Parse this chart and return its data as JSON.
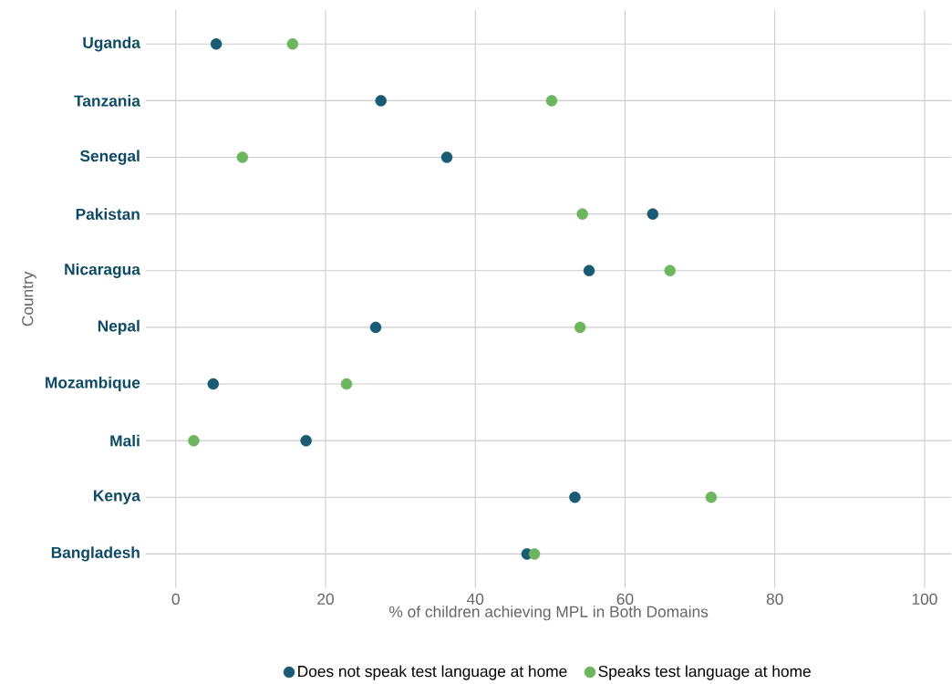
{
  "chart_data": {
    "type": "scatter",
    "orientation": "horizontal",
    "xlabel": "% of children achieving MPL in Both Domains",
    "ylabel": "Country",
    "categories": [
      "Uganda",
      "Tanzania",
      "Senegal",
      "Pakistan",
      "Nicaragua",
      "Nepal",
      "Mozambique",
      "Mali",
      "Kenya",
      "Bangladesh"
    ],
    "series": [
      {
        "name": "Does not speak test language at home",
        "color": "#1a5a73",
        "values": [
          5.4,
          27.4,
          36.2,
          63.7,
          55.2,
          26.7,
          5.0,
          17.4,
          53.3,
          46.9
        ]
      },
      {
        "name": "Speaks test language at home",
        "color": "#6db55e",
        "values": [
          15.6,
          50.2,
          8.9,
          54.3,
          66.0,
          54.0,
          22.8,
          2.4,
          71.5,
          47.9
        ]
      }
    ],
    "xlim": [
      -4,
      103.6
    ],
    "xticks": [
      0,
      20,
      40,
      60,
      80,
      100
    ],
    "grid": true,
    "legend": "bottom"
  }
}
